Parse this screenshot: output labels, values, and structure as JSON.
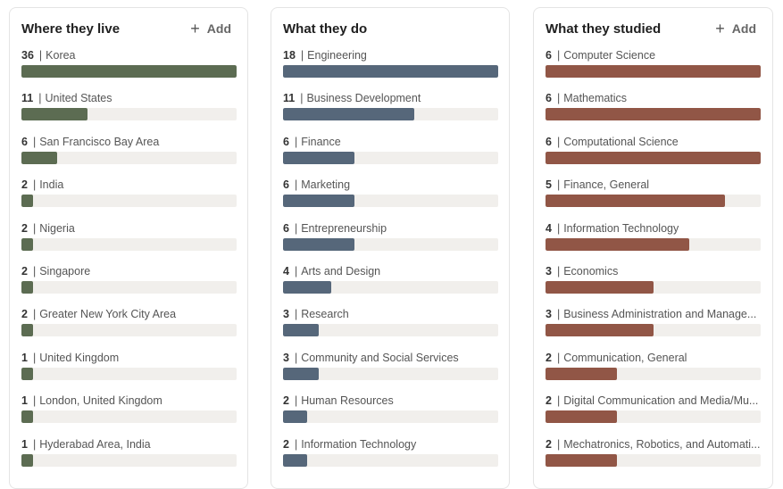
{
  "colors": {
    "live": "#5c6c52",
    "do": "#56677a",
    "studied": "#915646"
  },
  "icons": {
    "add": "plus-icon"
  },
  "cards": [
    {
      "key": "live",
      "title": "Where they live",
      "add_label": "Add",
      "show_add": true,
      "max": 36,
      "items": [
        {
          "count": "36",
          "label": "Korea"
        },
        {
          "count": "11",
          "label": "United States"
        },
        {
          "count": "6",
          "label": "San Francisco Bay Area"
        },
        {
          "count": "2",
          "label": "India"
        },
        {
          "count": "2",
          "label": "Nigeria"
        },
        {
          "count": "2",
          "label": "Singapore"
        },
        {
          "count": "2",
          "label": "Greater New York City Area"
        },
        {
          "count": "1",
          "label": "United Kingdom"
        },
        {
          "count": "1",
          "label": "London, United Kingdom"
        },
        {
          "count": "1",
          "label": "Hyderabad Area, India"
        }
      ]
    },
    {
      "key": "do",
      "title": "What they do",
      "add_label": "",
      "show_add": false,
      "max": 18,
      "items": [
        {
          "count": "18",
          "label": "Engineering"
        },
        {
          "count": "11",
          "label": "Business Development"
        },
        {
          "count": "6",
          "label": "Finance"
        },
        {
          "count": "6",
          "label": "Marketing"
        },
        {
          "count": "6",
          "label": "Entrepreneurship"
        },
        {
          "count": "4",
          "label": "Arts and Design"
        },
        {
          "count": "3",
          "label": "Research"
        },
        {
          "count": "3",
          "label": "Community and Social Services"
        },
        {
          "count": "2",
          "label": "Human Resources"
        },
        {
          "count": "2",
          "label": "Information Technology"
        }
      ]
    },
    {
      "key": "studied",
      "title": "What they studied",
      "add_label": "Add",
      "show_add": true,
      "max": 6,
      "items": [
        {
          "count": "6",
          "label": "Computer Science"
        },
        {
          "count": "6",
          "label": "Mathematics"
        },
        {
          "count": "6",
          "label": "Computational Science"
        },
        {
          "count": "5",
          "label": "Finance, General"
        },
        {
          "count": "4",
          "label": "Information Technology"
        },
        {
          "count": "3",
          "label": "Economics"
        },
        {
          "count": "3",
          "label": "Business Administration and Manage..."
        },
        {
          "count": "2",
          "label": "Communication, General"
        },
        {
          "count": "2",
          "label": "Digital Communication and Media/Mu..."
        },
        {
          "count": "2",
          "label": "Mechatronics, Robotics, and Automati..."
        }
      ]
    }
  ]
}
